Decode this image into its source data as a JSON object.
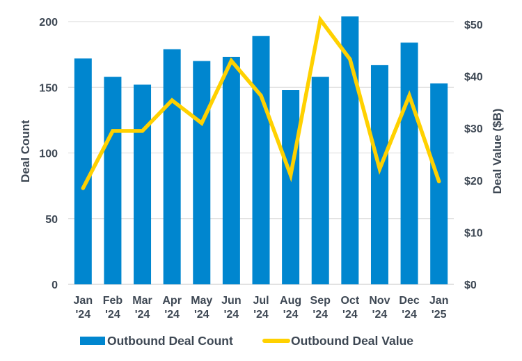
{
  "chart_data": {
    "type": "bar",
    "title": "",
    "categories": [
      [
        "Jan",
        "'24"
      ],
      [
        "Feb",
        "'24"
      ],
      [
        "Mar",
        "'24"
      ],
      [
        "Apr",
        "'24"
      ],
      [
        "May",
        "'24"
      ],
      [
        "Jun",
        "'24"
      ],
      [
        "Jul",
        "'24"
      ],
      [
        "Aug",
        "'24"
      ],
      [
        "Sep",
        "'24"
      ],
      [
        "Oct",
        "'24"
      ],
      [
        "Nov",
        "'24"
      ],
      [
        "Dec",
        "'24"
      ],
      [
        "Jan",
        "'25"
      ]
    ],
    "series": [
      {
        "name": "Outbound Deal Count",
        "type": "bar",
        "axis": "left",
        "color": "#0086cf",
        "values": [
          172,
          158,
          152,
          179,
          170,
          173,
          189,
          148,
          158,
          204,
          167,
          184,
          153
        ]
      },
      {
        "name": "Outbound Deal Value",
        "type": "line",
        "axis": "right",
        "color": "#ffd100",
        "values": [
          18.5,
          29.5,
          29.5,
          35.4,
          31.0,
          43.0,
          36.3,
          21.0,
          50.9,
          43.3,
          22.2,
          36.3,
          19.8
        ]
      }
    ],
    "ylabel": "Deal Count",
    "ylabel_right": "Deal Value ($B)",
    "ylim": [
      0,
      200
    ],
    "ylim_right": [
      0,
      50
    ],
    "yticks": [
      "0",
      "50",
      "100",
      "150",
      "200"
    ],
    "yticks_values": [
      0,
      50,
      100,
      150,
      200
    ],
    "yticks_right": [
      "$0",
      "$10",
      "$20",
      "$30",
      "$40",
      "$50"
    ],
    "yticks_right_values": [
      0,
      10,
      20,
      30,
      40,
      50
    ],
    "grid": true,
    "legend_position": "bottom",
    "legend": [
      "Outbound Deal Count",
      "Outbound Deal Value"
    ]
  }
}
